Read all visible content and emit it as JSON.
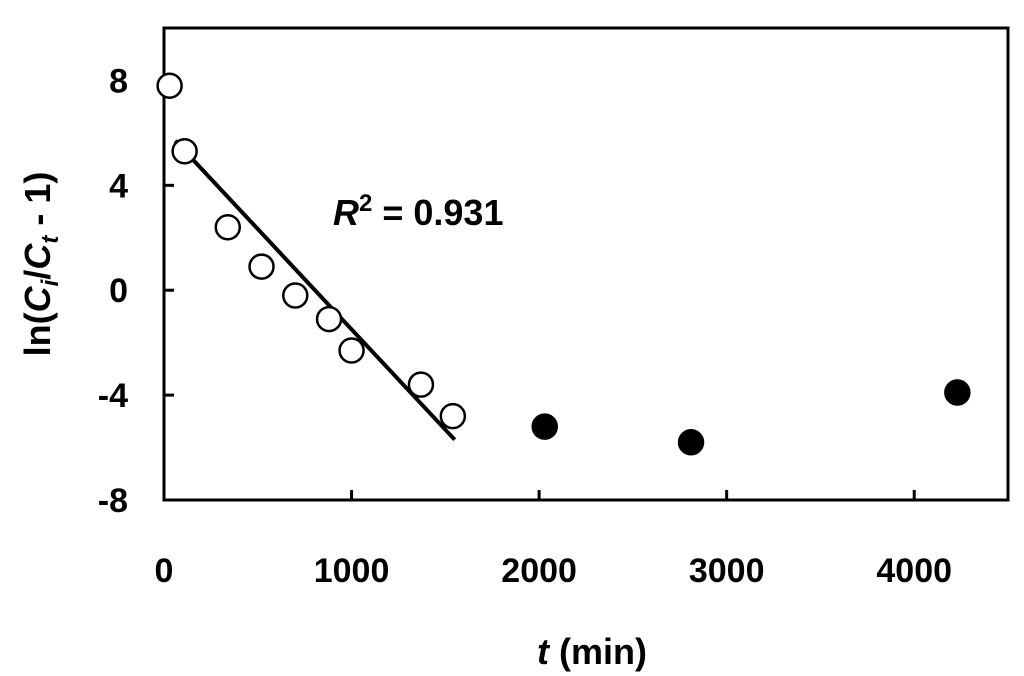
{
  "chart_data": {
    "type": "scatter",
    "xlabel": {
      "italic": "t",
      "rest": " (min)"
    },
    "ylabel": {
      "pre": "ln(",
      "c1": "C",
      "s1": "i",
      "mid": "/",
      "c2": "C",
      "s2": "t",
      "post": " - 1)"
    },
    "xlim": [
      0,
      4500
    ],
    "ylim": [
      -8,
      10
    ],
    "xticks": [
      0,
      1000,
      2000,
      3000,
      4000
    ],
    "xtick_labels": [
      "0",
      "1000",
      "2000",
      "3000",
      "4000"
    ],
    "yticks": [
      8,
      4,
      0,
      -4,
      -8
    ],
    "ytick_labels": [
      "8",
      "4",
      "0",
      "-4",
      "-8"
    ],
    "grid": false,
    "series": [
      {
        "marker": "open-circle",
        "x": [
          30,
          110,
          340,
          520,
          700,
          880,
          1000,
          1370,
          1540
        ],
        "y": [
          7.8,
          5.3,
          2.4,
          0.9,
          -0.2,
          -1.1,
          -2.3,
          -3.6,
          -4.8
        ]
      },
      {
        "marker": "filled-circle",
        "x": [
          2030,
          2810,
          4230
        ],
        "y": [
          -5.2,
          -5.8,
          -3.9
        ]
      }
    ],
    "fit_line": {
      "x": [
        60,
        1550
      ],
      "y": [
        5.7,
        -5.7
      ]
    },
    "annotation": {
      "prefix": "R",
      "sup": "2",
      "text": " = 0.931",
      "x": 900,
      "y": 2.8
    }
  }
}
